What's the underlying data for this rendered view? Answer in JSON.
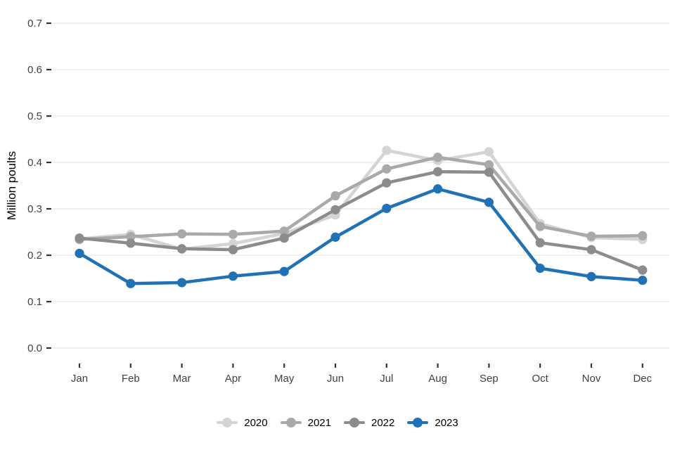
{
  "chart_data": {
    "type": "line",
    "title": "",
    "xlabel": "",
    "ylabel": "Million poults",
    "categories": [
      "Jan",
      "Feb",
      "Mar",
      "Apr",
      "May",
      "Jun",
      "Jul",
      "Aug",
      "Sep",
      "Oct",
      "Nov",
      "Dec"
    ],
    "y_ticks": [
      0.0,
      0.1,
      0.2,
      0.3,
      0.4,
      0.5,
      0.6,
      0.7
    ],
    "y_tick_labels": [
      "0.0",
      "0.1",
      "0.2",
      "0.3",
      "0.4",
      "0.5",
      "0.6",
      "0.7"
    ],
    "ylim": [
      0.0,
      0.72
    ],
    "grid": true,
    "legend_position": "bottom",
    "series": [
      {
        "name": "2020",
        "color": "#d4d4d4",
        "values": [
          0.235,
          0.245,
          0.213,
          0.225,
          0.247,
          0.287,
          0.426,
          0.404,
          0.423,
          0.268,
          0.238,
          0.234
        ]
      },
      {
        "name": "2021",
        "color": "#a9a9a9",
        "values": [
          0.234,
          0.24,
          0.246,
          0.245,
          0.252,
          0.328,
          0.386,
          0.411,
          0.395,
          0.262,
          0.241,
          0.242
        ]
      },
      {
        "name": "2022",
        "color": "#8c8c8c",
        "values": [
          0.237,
          0.226,
          0.214,
          0.212,
          0.237,
          0.298,
          0.356,
          0.38,
          0.379,
          0.227,
          0.212,
          0.168
        ]
      },
      {
        "name": "2023",
        "color": "#2171b5",
        "values": [
          0.204,
          0.139,
          0.141,
          0.155,
          0.165,
          0.239,
          0.301,
          0.343,
          0.314,
          0.172,
          0.154,
          0.146
        ]
      }
    ],
    "style": {
      "grid_color": "#ebebeb",
      "tick_color": "#333333",
      "tick_label_color": "#404040",
      "axis_title_color": "#000000",
      "background": "#ffffff"
    }
  }
}
